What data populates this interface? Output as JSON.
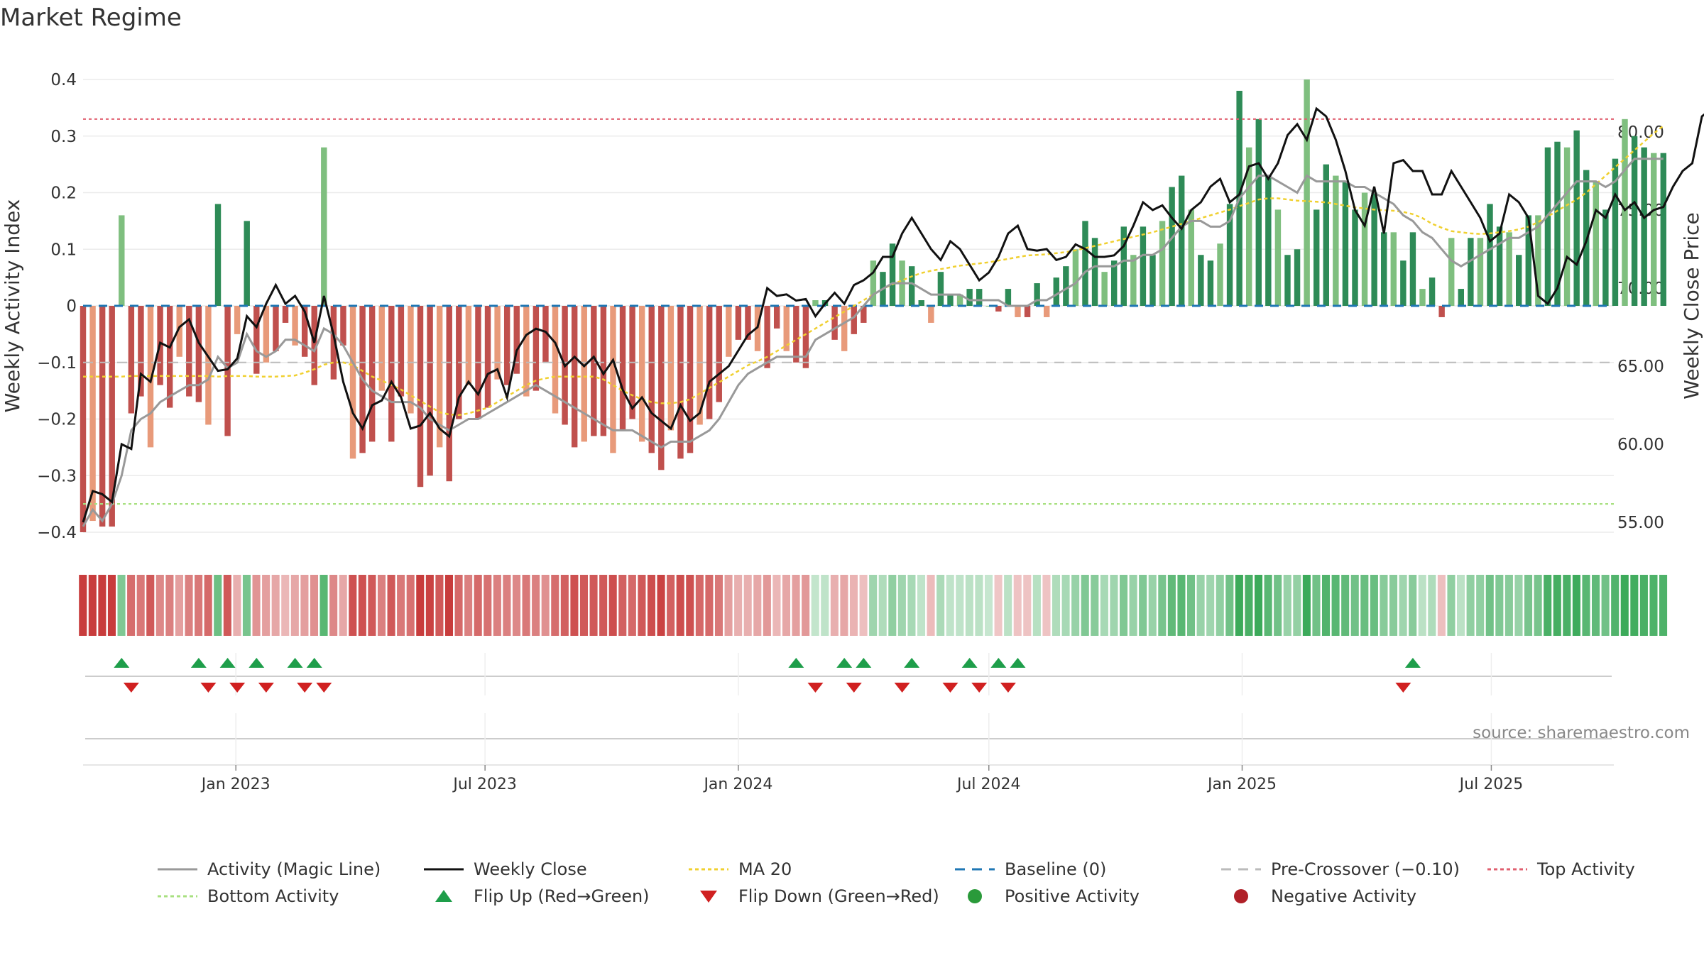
{
  "title": "Market Regime",
  "source": "source: sharemaestro.com",
  "colors": {
    "positive_dark": "#2e8b57",
    "positive_light": "#7fbf7f",
    "negative_dark": "#c0504d",
    "negative_light": "#e89a7a",
    "magic_line": "#999999",
    "close": "#111111",
    "ma20": "#f0d030",
    "baseline": "#1f77b4",
    "pre_crossover": "#bbbbbb",
    "top_activity": "#e06070",
    "bottom_activity": "#a8e080",
    "flip_up": "#1e9e4a",
    "flip_down": "#d02020"
  },
  "chart_data": {
    "type": "bar",
    "ylabel": "Weekly Activity Index",
    "y2label": "Weekly Close Price",
    "ylim": [
      -0.4,
      0.4
    ],
    "y2lim": [
      55,
      80
    ],
    "yticks": [
      {
        "value": 0.4,
        "label": "0.4"
      },
      {
        "value": 0.3,
        "label": "0.3"
      },
      {
        "value": 0.2,
        "label": "0.2"
      },
      {
        "value": 0.1,
        "label": "0.1"
      },
      {
        "value": 0,
        "label": "0"
      },
      {
        "value": -0.1,
        "label": "−0.1"
      },
      {
        "value": -0.2,
        "label": "−0.2"
      },
      {
        "value": -0.3,
        "label": "−0.3"
      },
      {
        "value": -0.4,
        "label": "−0.4"
      }
    ],
    "y2ticks": [
      {
        "value": 80,
        "label": "80.00"
      },
      {
        "value": 75,
        "label": "75.00"
      },
      {
        "value": 70,
        "label": "70.00"
      },
      {
        "value": 65,
        "label": "65.00"
      },
      {
        "value": 60,
        "label": "60.00"
      },
      {
        "value": 55,
        "label": "55.00"
      }
    ],
    "x_start": "2022-09-12",
    "x_end": "2025-09-28",
    "xticks": [
      {
        "date": "2023-01-01",
        "label": "Jan 2023"
      },
      {
        "date": "2023-07-01",
        "label": "Jul 2023"
      },
      {
        "date": "2024-01-01",
        "label": "Jan 2024"
      },
      {
        "date": "2024-07-01",
        "label": "Jul 2024"
      },
      {
        "date": "2025-01-01",
        "label": "Jan 2025"
      },
      {
        "date": "2025-07-01",
        "label": "Jul 2025"
      }
    ],
    "reference_lines": [
      {
        "name": "Baseline (0)",
        "value": 0
      },
      {
        "name": "Pre-Crossover (−0.10)",
        "value": -0.1
      },
      {
        "name": "Top Activity",
        "value": 0.33
      },
      {
        "name": "Bottom Activity",
        "value": -0.35
      }
    ],
    "weeks_start": "2022-09-12",
    "activity": [
      -0.4,
      -0.38,
      -0.39,
      -0.39,
      0.16,
      -0.19,
      -0.16,
      -0.25,
      -0.14,
      -0.18,
      -0.09,
      -0.16,
      -0.17,
      -0.21,
      0.18,
      -0.23,
      -0.05,
      0.15,
      -0.12,
      -0.1,
      -0.08,
      -0.03,
      -0.07,
      -0.09,
      -0.14,
      0.28,
      -0.13,
      -0.07,
      -0.27,
      -0.26,
      -0.24,
      -0.15,
      -0.24,
      -0.16,
      -0.19,
      -0.32,
      -0.3,
      -0.25,
      -0.31,
      -0.2,
      -0.14,
      -0.2,
      -0.18,
      -0.13,
      -0.14,
      -0.12,
      -0.16,
      -0.15,
      -0.1,
      -0.19,
      -0.21,
      -0.25,
      -0.24,
      -0.23,
      -0.23,
      -0.26,
      -0.22,
      -0.2,
      -0.24,
      -0.26,
      -0.29,
      -0.22,
      -0.27,
      -0.26,
      -0.21,
      -0.2,
      -0.17,
      -0.09,
      -0.06,
      -0.06,
      -0.08,
      -0.11,
      -0.04,
      -0.08,
      -0.1,
      -0.11,
      0.01,
      0.01,
      -0.06,
      -0.08,
      -0.05,
      -0.03,
      0.08,
      0.06,
      0.11,
      0.08,
      0.07,
      0.01,
      -0.03,
      0.06,
      0.02,
      0.02,
      0.03,
      0.03,
      0.0,
      -0.01,
      0.03,
      -0.02,
      -0.02,
      0.04,
      -0.02,
      0.05,
      0.07,
      0.1,
      0.15,
      0.12,
      0.06,
      0.08,
      0.14,
      0.09,
      0.14,
      0.09,
      0.15,
      0.21,
      0.23,
      0.17,
      0.09,
      0.08,
      0.11,
      0.18,
      0.38,
      0.28,
      0.33,
      0.23,
      0.17,
      0.09,
      0.1,
      0.4,
      0.17,
      0.25,
      0.23,
      0.22,
      0.17,
      0.2,
      0.2,
      0.13,
      0.13,
      0.08,
      0.13,
      0.03,
      0.05,
      -0.02,
      0.12,
      0.03,
      0.12,
      0.12,
      0.18,
      0.14,
      0.13,
      0.09,
      0.16,
      0.16,
      0.28,
      0.29,
      0.28,
      0.31,
      0.24,
      0.22,
      0.17,
      0.26,
      0.33,
      0.3,
      0.28,
      0.27,
      0.27
    ],
    "magic_line": [
      -0.39,
      -0.36,
      -0.38,
      -0.35,
      -0.3,
      -0.22,
      -0.2,
      -0.19,
      -0.17,
      -0.16,
      -0.15,
      -0.14,
      -0.14,
      -0.13,
      -0.09,
      -0.11,
      -0.1,
      -0.05,
      -0.08,
      -0.09,
      -0.08,
      -0.06,
      -0.06,
      -0.07,
      -0.08,
      -0.04,
      -0.05,
      -0.07,
      -0.1,
      -0.13,
      -0.15,
      -0.16,
      -0.17,
      -0.17,
      -0.17,
      -0.18,
      -0.2,
      -0.21,
      -0.22,
      -0.21,
      -0.2,
      -0.2,
      -0.19,
      -0.18,
      -0.17,
      -0.16,
      -0.15,
      -0.14,
      -0.15,
      -0.16,
      -0.17,
      -0.18,
      -0.19,
      -0.2,
      -0.21,
      -0.22,
      -0.22,
      -0.22,
      -0.23,
      -0.24,
      -0.25,
      -0.24,
      -0.24,
      -0.24,
      -0.23,
      -0.22,
      -0.2,
      -0.17,
      -0.14,
      -0.12,
      -0.11,
      -0.1,
      -0.09,
      -0.09,
      -0.09,
      -0.09,
      -0.06,
      -0.05,
      -0.04,
      -0.03,
      -0.02,
      0.0,
      0.02,
      0.03,
      0.04,
      0.04,
      0.04,
      0.03,
      0.02,
      0.02,
      0.02,
      0.02,
      0.01,
      0.01,
      0.01,
      0.01,
      0.0,
      0.0,
      0.0,
      0.01,
      0.01,
      0.02,
      0.03,
      0.04,
      0.06,
      0.07,
      0.07,
      0.07,
      0.08,
      0.08,
      0.09,
      0.09,
      0.1,
      0.12,
      0.14,
      0.15,
      0.15,
      0.14,
      0.14,
      0.15,
      0.19,
      0.21,
      0.23,
      0.23,
      0.22,
      0.21,
      0.2,
      0.23,
      0.22,
      0.22,
      0.22,
      0.22,
      0.21,
      0.21,
      0.2,
      0.19,
      0.18,
      0.16,
      0.15,
      0.13,
      0.12,
      0.1,
      0.08,
      0.07,
      0.08,
      0.09,
      0.1,
      0.11,
      0.12,
      0.12,
      0.13,
      0.14,
      0.16,
      0.18,
      0.2,
      0.22,
      0.22,
      0.22,
      0.21,
      0.22,
      0.24,
      0.26,
      0.26,
      0.26,
      0.26
    ],
    "close": [
      55.0,
      57.0,
      56.8,
      56.3,
      60.0,
      59.7,
      64.5,
      64.0,
      66.5,
      66.2,
      67.5,
      68.0,
      66.5,
      65.6,
      64.7,
      64.8,
      65.5,
      68.2,
      67.5,
      69.0,
      70.2,
      69.0,
      69.5,
      68.5,
      66.5,
      69.5,
      67.0,
      64.0,
      62.0,
      61.0,
      62.5,
      62.8,
      64.0,
      63.0,
      61.0,
      61.2,
      62.0,
      61.0,
      60.5,
      63.0,
      64.0,
      63.2,
      64.5,
      64.8,
      63.0,
      66.0,
      67.0,
      67.4,
      67.2,
      66.5,
      65.0,
      65.6,
      65.0,
      65.6,
      64.5,
      65.4,
      63.5,
      62.3,
      63.0,
      62.0,
      61.5,
      61.0,
      62.5,
      61.5,
      62.0,
      64.0,
      64.5,
      65.0,
      66.0,
      67.0,
      67.5,
      70.0,
      69.5,
      69.6,
      69.2,
      69.3,
      68.2,
      69.0,
      69.7,
      69.0,
      70.2,
      70.5,
      71.0,
      72.0,
      72.0,
      73.5,
      74.5,
      73.5,
      72.5,
      71.8,
      73.0,
      72.5,
      71.5,
      70.5,
      71.0,
      72.0,
      73.5,
      74.0,
      72.5,
      72.4,
      72.5,
      71.8,
      72.0,
      72.8,
      72.5,
      72.0,
      72.0,
      72.1,
      72.7,
      74.0,
      75.5,
      75.0,
      75.3,
      74.5,
      73.8,
      75.0,
      75.5,
      76.5,
      77.0,
      75.5,
      76.0,
      77.8,
      78.0,
      77.0,
      78.0,
      79.8,
      80.5,
      79.5,
      81.5,
      81.0,
      79.5,
      77.5,
      75.0,
      74.0,
      76.5,
      73.5,
      78.0,
      78.2,
      77.5,
      77.5,
      76.0,
      76.0,
      77.5,
      76.5,
      75.5,
      74.5,
      73.0,
      73.5,
      76.0,
      75.5,
      74.5,
      69.5,
      69.0,
      70.0,
      72.0,
      71.5,
      73.0,
      75.0,
      74.5,
      76.0,
      75.0,
      75.5,
      74.5,
      75.0,
      75.2,
      76.5,
      77.5,
      78.0,
      81.0,
      81.5,
      80.5,
      81.5,
      80.0,
      80.0,
      81.0,
      82.0,
      84.0,
      84.2,
      84.2,
      84.0,
      84.0,
      83.5
    ],
    "close_start": "2022-09-12",
    "ma20": [
      -0.125,
      -0.125,
      -0.125,
      -0.125,
      -0.125,
      -0.124,
      -0.124,
      -0.124,
      -0.124,
      -0.124,
      -0.124,
      -0.124,
      -0.124,
      -0.124,
      -0.125,
      -0.124,
      -0.124,
      -0.124,
      -0.125,
      -0.125,
      -0.125,
      -0.124,
      -0.123,
      -0.118,
      -0.112,
      -0.104,
      -0.1,
      -0.1,
      -0.105,
      -0.115,
      -0.125,
      -0.132,
      -0.14,
      -0.148,
      -0.158,
      -0.168,
      -0.178,
      -0.188,
      -0.192,
      -0.193,
      -0.19,
      -0.185,
      -0.18,
      -0.17,
      -0.16,
      -0.15,
      -0.14,
      -0.132,
      -0.128,
      -0.125,
      -0.125,
      -0.125,
      -0.125,
      -0.125,
      -0.13,
      -0.14,
      -0.15,
      -0.158,
      -0.165,
      -0.17,
      -0.172,
      -0.172,
      -0.17,
      -0.165,
      -0.155,
      -0.145,
      -0.135,
      -0.125,
      -0.115,
      -0.105,
      -0.098,
      -0.09,
      -0.08,
      -0.07,
      -0.06,
      -0.05,
      -0.04,
      -0.03,
      -0.02,
      -0.01,
      0.0,
      0.01,
      0.02,
      0.03,
      0.038,
      0.045,
      0.052,
      0.058,
      0.062,
      0.065,
      0.068,
      0.071,
      0.073,
      0.075,
      0.077,
      0.08,
      0.083,
      0.086,
      0.089,
      0.09,
      0.091,
      0.093,
      0.095,
      0.098,
      0.102,
      0.106,
      0.11,
      0.114,
      0.118,
      0.122,
      0.126,
      0.13,
      0.135,
      0.14,
      0.145,
      0.15,
      0.155,
      0.16,
      0.165,
      0.17,
      0.176,
      0.182,
      0.188,
      0.19,
      0.19,
      0.188,
      0.186,
      0.185,
      0.184,
      0.183,
      0.18,
      0.177,
      0.174,
      0.172,
      0.17,
      0.169,
      0.168,
      0.166,
      0.162,
      0.155,
      0.145,
      0.138,
      0.132,
      0.13,
      0.128,
      0.127,
      0.128,
      0.13,
      0.132,
      0.135,
      0.14,
      0.148,
      0.158,
      0.168,
      0.178,
      0.188,
      0.2,
      0.215,
      0.23,
      0.245,
      0.26,
      0.275,
      0.29,
      0.305,
      0.318
    ],
    "regime_strip": [
      0.4,
      0.4,
      0.4,
      0.4,
      -0.2,
      0.25,
      0.22,
      0.3,
      0.18,
      0.2,
      0.12,
      0.2,
      0.22,
      0.26,
      -0.25,
      0.3,
      0.08,
      -0.22,
      0.15,
      0.12,
      0.1,
      0.06,
      0.1,
      0.12,
      0.16,
      -0.3,
      0.18,
      0.1,
      0.32,
      0.32,
      0.3,
      0.2,
      0.3,
      0.22,
      0.24,
      0.38,
      0.36,
      0.3,
      0.38,
      0.26,
      0.2,
      0.26,
      0.24,
      0.2,
      0.2,
      0.18,
      0.22,
      0.2,
      0.16,
      0.25,
      0.28,
      0.32,
      0.3,
      0.3,
      0.3,
      0.33,
      0.28,
      0.26,
      0.3,
      0.33,
      0.36,
      0.28,
      0.33,
      0.32,
      0.26,
      0.26,
      0.22,
      0.12,
      0.08,
      0.08,
      0.1,
      0.14,
      0.06,
      0.1,
      0.12,
      0.14,
      -0.03,
      -0.04,
      0.08,
      0.1,
      0.07,
      0.04,
      -0.12,
      -0.08,
      -0.16,
      -0.12,
      -0.1,
      -0.04,
      0.05,
      -0.09,
      -0.04,
      -0.04,
      -0.05,
      -0.05,
      -0.02,
      0.02,
      -0.05,
      0.03,
      0.03,
      -0.06,
      0.03,
      -0.08,
      -0.1,
      -0.14,
      -0.2,
      -0.18,
      -0.1,
      -0.12,
      -0.2,
      -0.14,
      -0.2,
      -0.14,
      -0.22,
      -0.28,
      -0.3,
      -0.24,
      -0.14,
      -0.12,
      -0.16,
      -0.24,
      -0.4,
      -0.34,
      -0.38,
      -0.3,
      -0.24,
      -0.14,
      -0.15,
      -0.4,
      -0.24,
      -0.32,
      -0.3,
      -0.28,
      -0.24,
      -0.26,
      -0.26,
      -0.18,
      -0.18,
      -0.12,
      -0.18,
      -0.05,
      -0.08,
      0.04,
      -0.16,
      -0.05,
      -0.16,
      -0.16,
      -0.24,
      -0.2,
      -0.18,
      -0.14,
      -0.22,
      -0.22,
      -0.34,
      -0.35,
      -0.34,
      -0.37,
      -0.3,
      -0.28,
      -0.24,
      -0.32,
      -0.38,
      -0.36,
      -0.34,
      -0.33,
      -0.33
    ],
    "flip_up": [
      "2022-10-10",
      "2022-12-05",
      "2022-12-26",
      "2023-01-16",
      "2023-02-13",
      "2023-02-27",
      "2024-02-12",
      "2024-03-18",
      "2024-04-01",
      "2024-05-06",
      "2024-06-17",
      "2024-07-08",
      "2024-07-22",
      "2025-05-05"
    ],
    "flip_down": [
      "2022-10-17",
      "2022-12-12",
      "2023-01-02",
      "2023-01-23",
      "2023-02-20",
      "2023-03-06",
      "2024-02-26",
      "2024-03-25",
      "2024-04-29",
      "2024-06-03",
      "2024-06-24",
      "2024-07-15",
      "2025-04-28"
    ]
  },
  "legend": [
    {
      "label": "Activity (Magic Line)",
      "icon": "line-solid-gray",
      "color": "#999999"
    },
    {
      "label": "Weekly Close",
      "icon": "line-solid-black",
      "color": "#111111"
    },
    {
      "label": "MA 20",
      "icon": "line-dotted-yellow",
      "color": "#f0d030"
    },
    {
      "label": "Baseline (0)",
      "icon": "line-dashed-blue",
      "color": "#1f77b4"
    },
    {
      "label": "Pre-Crossover (−0.10)",
      "icon": "line-dashed-gray",
      "color": "#bbbbbb"
    },
    {
      "label": "Top Activity",
      "icon": "line-dotted-red",
      "color": "#e06070"
    },
    {
      "label": "Bottom Activity",
      "icon": "line-dotted-green",
      "color": "#a8e080"
    },
    {
      "label": "Flip Up (Red→Green)",
      "icon": "triangle-up-icon",
      "color": "#1e9e4a"
    },
    {
      "label": "Flip Down (Green→Red)",
      "icon": "triangle-down-icon",
      "color": "#d02020"
    },
    {
      "label": "Positive Activity",
      "icon": "circle-green-icon",
      "color": "#2a9a3a"
    },
    {
      "label": "Negative Activity",
      "icon": "circle-red-icon",
      "color": "#b02028"
    }
  ]
}
